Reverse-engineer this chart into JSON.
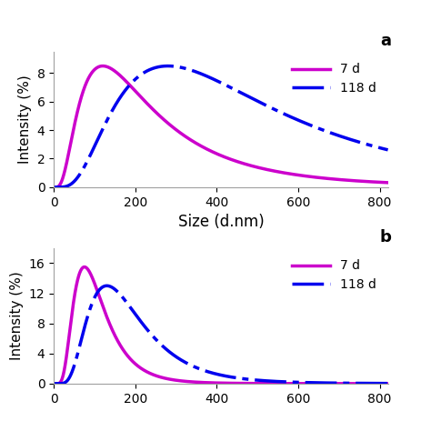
{
  "panel_a": {
    "curve_7d": {
      "color": "#cc00cc",
      "lw": 2.5,
      "peak_x": 120,
      "sigma": 0.75,
      "peak_y": 8.5,
      "label": "7 d"
    },
    "curve_118d": {
      "color": "#0000ee",
      "lw": 2.5,
      "peak_x": 280,
      "sigma": 0.7,
      "peak_y": 8.5,
      "label": "118 d"
    },
    "ylabel": "Intensity (%)",
    "xlabel": "Size (d.nm)",
    "ylim": [
      0,
      9.5
    ],
    "yticks": [
      0,
      2,
      4,
      6,
      8
    ],
    "xlim": [
      0,
      820
    ],
    "xticks": [
      0,
      200,
      400,
      600,
      800
    ],
    "label_a": "a"
  },
  "panel_b": {
    "curve_7d": {
      "color": "#cc00cc",
      "lw": 2.5,
      "peak_x": 75,
      "sigma": 0.52,
      "peak_y": 15.5,
      "label": "7 d"
    },
    "curve_118d": {
      "color": "#0000ee",
      "lw": 2.5,
      "peak_x": 130,
      "sigma": 0.52,
      "peak_y": 13.0,
      "label": "118 d"
    },
    "ylabel": "Intensity (%)",
    "ylim": [
      0,
      18
    ],
    "yticks": [
      0,
      4,
      8,
      12,
      16
    ],
    "xlim": [
      0,
      820
    ],
    "xticks": [
      0,
      200,
      400,
      600,
      800
    ],
    "label_b": "b"
  },
  "background_color": "#ffffff",
  "spine_color": "#a0a0a0",
  "dashes_118d": [
    10,
    2,
    2,
    2
  ]
}
